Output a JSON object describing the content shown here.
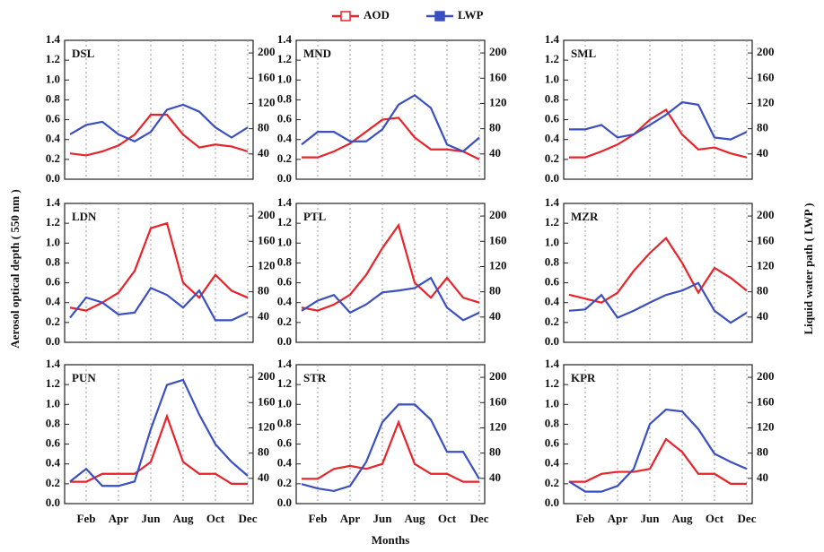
{
  "chart_data": [
    {
      "type": "line",
      "title": "DSL",
      "ylim": [
        0,
        1.4
      ],
      "yticks": [
        {
          "value": 0,
          "label": "0.0"
        },
        0.2,
        0.4,
        0.6,
        0.8,
        {
          "value": 1,
          "label": "1.0"
        },
        1.2,
        1.4
      ],
      "y2lim": [
        0,
        220
      ],
      "y2ticks": [
        40,
        80,
        120,
        160,
        200
      ],
      "series": [
        {
          "name": "AOD",
          "color": "#e8232a",
          "values": [
            0.26,
            0.24,
            0.28,
            0.34,
            0.45,
            0.65,
            0.65,
            0.45,
            0.32,
            0.35,
            0.33,
            0.28
          ]
        },
        {
          "name": "LWP",
          "color": "#3a4fc0",
          "axis": "y2",
          "values": [
            71,
            86,
            91,
            71,
            60,
            75,
            110,
            118,
            107,
            82,
            66,
            82
          ]
        }
      ]
    },
    {
      "type": "line",
      "title": "MND",
      "ylim": [
        0,
        1.4
      ],
      "yticks": [
        {
          "value": 0,
          "label": "0.0"
        },
        0.2,
        0.4,
        0.6,
        0.8,
        {
          "value": 1,
          "label": "1.0"
        },
        1.2,
        1.4
      ],
      "y2lim": [
        0,
        220
      ],
      "y2ticks": [
        40,
        80,
        120,
        160,
        200
      ],
      "series": [
        {
          "name": "AOD",
          "color": "#e8232a",
          "values": [
            0.22,
            0.22,
            0.28,
            0.36,
            0.48,
            0.6,
            0.62,
            0.42,
            0.3,
            0.3,
            0.28,
            0.2
          ]
        },
        {
          "name": "LWP",
          "color": "#3a4fc0",
          "axis": "y2",
          "values": [
            55,
            75,
            75,
            60,
            60,
            79,
            118,
            133,
            113,
            55,
            44,
            66
          ]
        }
      ]
    },
    {
      "type": "line",
      "title": "SML",
      "ylim": [
        0,
        1.4
      ],
      "yticks": [
        {
          "value": 0,
          "label": "0.0"
        },
        0.2,
        0.4,
        0.6,
        0.8,
        {
          "value": 1,
          "label": "1.0"
        },
        1.2,
        1.4
      ],
      "y2lim": [
        0,
        220
      ],
      "y2ticks": [
        40,
        80,
        120,
        160,
        200
      ],
      "series": [
        {
          "name": "AOD",
          "color": "#e8232a",
          "values": [
            0.22,
            0.22,
            0.28,
            0.35,
            0.45,
            0.6,
            0.7,
            0.45,
            0.3,
            0.32,
            0.26,
            0.22
          ]
        },
        {
          "name": "LWP",
          "color": "#3a4fc0",
          "axis": "y2",
          "values": [
            79,
            79,
            86,
            66,
            71,
            86,
            102,
            122,
            118,
            66,
            63,
            75
          ]
        }
      ]
    },
    {
      "type": "line",
      "title": "LDN",
      "ylabel": "Aerosol optical depth ( 550  nm )",
      "ylim": [
        0,
        1.4
      ],
      "yticks": [
        {
          "value": 0,
          "label": "0.0"
        },
        0.2,
        0.4,
        0.6,
        0.8,
        {
          "value": 1,
          "label": "1.0"
        },
        1.2,
        1.4
      ],
      "y2lim": [
        0,
        220
      ],
      "y2ticks": [
        40,
        80,
        120,
        160,
        200
      ],
      "series": [
        {
          "name": "AOD",
          "color": "#e8232a",
          "values": [
            0.35,
            0.32,
            0.4,
            0.5,
            0.72,
            1.15,
            1.2,
            0.6,
            0.45,
            0.68,
            0.52,
            0.45
          ]
        },
        {
          "name": "LWP",
          "color": "#3a4fc0",
          "axis": "y2",
          "values": [
            39,
            71,
            63,
            44,
            47,
            86,
            75,
            55,
            82,
            35,
            35,
            47
          ]
        }
      ]
    },
    {
      "type": "line",
      "title": "PTL",
      "ylim": [
        0,
        1.4
      ],
      "yticks": [
        {
          "value": 0,
          "label": "0.0"
        },
        0.2,
        0.4,
        0.6,
        0.8,
        {
          "value": 1,
          "label": "1.0"
        },
        1.2,
        1.4
      ],
      "y2lim": [
        0,
        220
      ],
      "y2ticks": [
        40,
        80,
        120,
        160,
        200
      ],
      "series": [
        {
          "name": "AOD",
          "color": "#e8232a",
          "values": [
            0.35,
            0.32,
            0.38,
            0.48,
            0.68,
            0.95,
            1.18,
            0.6,
            0.45,
            0.65,
            0.45,
            0.4
          ]
        },
        {
          "name": "LWP",
          "color": "#3a4fc0",
          "axis": "y2",
          "values": [
            50,
            66,
            75,
            47,
            60,
            79,
            82,
            86,
            102,
            55,
            35,
            47
          ]
        }
      ]
    },
    {
      "type": "line",
      "title": "MZR",
      "y2label": "Liquid water path ( LWP )",
      "ylim": [
        0,
        1.4
      ],
      "yticks": [
        {
          "value": 0,
          "label": "0.0"
        },
        0.2,
        0.4,
        0.6,
        0.8,
        {
          "value": 1,
          "label": "1.0"
        },
        1.2,
        1.4
      ],
      "y2lim": [
        0,
        220
      ],
      "y2ticks": [
        40,
        80,
        120,
        160,
        200
      ],
      "series": [
        {
          "name": "AOD",
          "color": "#e8232a",
          "values": [
            0.48,
            0.44,
            0.4,
            0.5,
            0.72,
            0.9,
            1.05,
            0.8,
            0.5,
            0.75,
            0.65,
            0.52
          ]
        },
        {
          "name": "LWP",
          "color": "#3a4fc0",
          "axis": "y2",
          "values": [
            50,
            52,
            75,
            39,
            50,
            63,
            75,
            82,
            94,
            50,
            31,
            47
          ]
        }
      ]
    },
    {
      "type": "line",
      "title": "PUN",
      "categories": [
        null,
        "Feb",
        null,
        "Apr",
        null,
        "Jun",
        null,
        "Aug",
        null,
        "Oct",
        null,
        "Dec"
      ],
      "ylim": [
        0,
        1.4
      ],
      "yticks": [
        {
          "value": 0,
          "label": "0.0"
        },
        0.2,
        0.4,
        0.6,
        0.8,
        {
          "value": 1,
          "label": "1.0"
        },
        1.2,
        1.4
      ],
      "y2lim": [
        0,
        220
      ],
      "y2ticks": [
        40,
        80,
        120,
        160,
        200
      ],
      "series": [
        {
          "name": "AOD",
          "color": "#e8232a",
          "values": [
            0.22,
            0.22,
            0.3,
            0.3,
            0.3,
            0.42,
            0.88,
            0.42,
            0.3,
            0.3,
            0.2,
            0.2
          ]
        },
        {
          "name": "LWP",
          "color": "#3a4fc0",
          "axis": "y2",
          "values": [
            35,
            55,
            28,
            28,
            35,
            118,
            188,
            196,
            141,
            94,
            66,
            44
          ]
        }
      ]
    },
    {
      "type": "line",
      "title": "STR",
      "xlabel": "Months",
      "categories": [
        null,
        "Feb",
        null,
        "Apr",
        null,
        "Jun",
        null,
        "Aug",
        null,
        "Oct",
        null,
        "Dec"
      ],
      "ylim": [
        0,
        1.4
      ],
      "yticks": [
        {
          "value": 0,
          "label": "0.0"
        },
        0.2,
        0.4,
        0.6,
        0.8,
        {
          "value": 1,
          "label": "1.0"
        },
        1.2,
        1.4
      ],
      "y2lim": [
        0,
        220
      ],
      "y2ticks": [
        40,
        80,
        120,
        160,
        200
      ],
      "series": [
        {
          "name": "AOD",
          "color": "#e8232a",
          "values": [
            0.25,
            0.25,
            0.35,
            0.38,
            0.35,
            0.4,
            0.82,
            0.4,
            0.3,
            0.3,
            0.22,
            0.22
          ]
        },
        {
          "name": "LWP",
          "color": "#3a4fc0",
          "axis": "y2",
          "values": [
            31,
            24,
            20,
            28,
            66,
            129,
            157,
            157,
            133,
            82,
            82,
            39
          ]
        }
      ]
    },
    {
      "type": "line",
      "title": "KPR",
      "categories": [
        null,
        "Feb",
        null,
        "Apr",
        null,
        "Jun",
        null,
        "Aug",
        null,
        "Oct",
        null,
        "Dec"
      ],
      "ylim": [
        0,
        1.4
      ],
      "yticks": [
        {
          "value": 0,
          "label": "0.0"
        },
        0.2,
        0.4,
        0.6,
        0.8,
        {
          "value": 1,
          "label": "1.0"
        },
        1.2,
        1.4
      ],
      "y2lim": [
        0,
        220
      ],
      "y2ticks": [
        40,
        80,
        120,
        160,
        200
      ],
      "series": [
        {
          "name": "AOD",
          "color": "#e8232a",
          "values": [
            0.22,
            0.22,
            0.3,
            0.32,
            0.32,
            0.35,
            0.65,
            0.52,
            0.3,
            0.3,
            0.2,
            0.2
          ]
        },
        {
          "name": "LWP",
          "color": "#3a4fc0",
          "axis": "y2",
          "values": [
            35,
            19,
            19,
            28,
            55,
            126,
            149,
            146,
            118,
            79,
            66,
            55
          ]
        }
      ]
    }
  ]
}
